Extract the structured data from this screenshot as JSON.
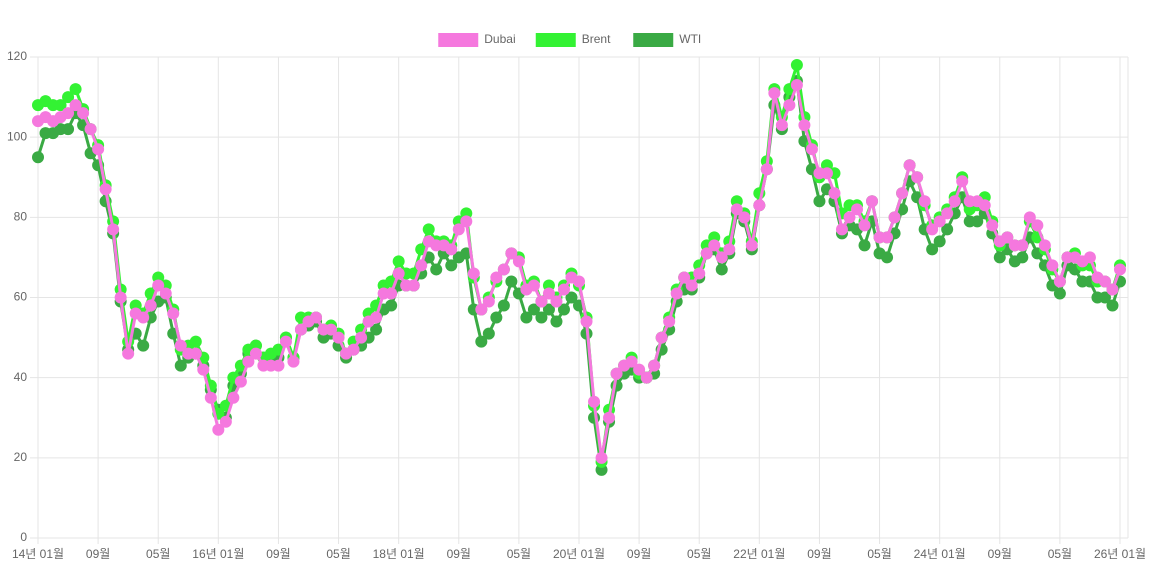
{
  "chart_data": {
    "type": "line",
    "categories": [
      "14년 01월",
      null,
      null,
      null,
      null,
      null,
      null,
      null,
      "09월",
      null,
      null,
      null,
      null,
      null,
      null,
      null,
      "05월",
      null,
      null,
      null,
      null,
      null,
      null,
      null,
      "16년 01월",
      null,
      null,
      null,
      null,
      null,
      null,
      null,
      "09월",
      null,
      null,
      null,
      null,
      null,
      null,
      null,
      "05월",
      null,
      null,
      null,
      null,
      null,
      null,
      null,
      "18년 01월",
      null,
      null,
      null,
      null,
      null,
      null,
      null,
      "09월",
      null,
      null,
      null,
      null,
      null,
      null,
      null,
      "05월",
      null,
      null,
      null,
      null,
      null,
      null,
      null,
      "20년 01월",
      null,
      null,
      null,
      null,
      null,
      null,
      null,
      "09월",
      null,
      null,
      null,
      null,
      null,
      null,
      null,
      "05월",
      null,
      null,
      null,
      null,
      null,
      null,
      null,
      "22년 01월",
      null,
      null,
      null,
      null,
      null,
      null,
      null,
      "09월",
      null,
      null,
      null,
      null,
      null,
      null,
      null,
      "05월",
      null,
      null,
      null,
      null,
      null,
      null,
      null,
      "24년 01월",
      null,
      null,
      null,
      null,
      null,
      null,
      null,
      "09월",
      null,
      null,
      null,
      null,
      null,
      null,
      null,
      "05월",
      null,
      null,
      null,
      null,
      null,
      null,
      null,
      "26년 01월"
    ],
    "series": [
      {
        "name": "Dubai",
        "color": "#f578de",
        "values": [
          104,
          105,
          104,
          105,
          106,
          108,
          106,
          102,
          97,
          87,
          77,
          60,
          46,
          56,
          55,
          58,
          63,
          61,
          56,
          48,
          46,
          46,
          42,
          35,
          27,
          29,
          35,
          39,
          44,
          46,
          43,
          43,
          43,
          49,
          44,
          52,
          54,
          55,
          52,
          52,
          50,
          46,
          47,
          50,
          54,
          55,
          61,
          61,
          66,
          63,
          63,
          68,
          74,
          73,
          73,
          72,
          77,
          79,
          66,
          57,
          59,
          65,
          67,
          71,
          69,
          62,
          63,
          59,
          61,
          59,
          62,
          65,
          64,
          54,
          34,
          20,
          30,
          41,
          43,
          44,
          42,
          40,
          43,
          50,
          54,
          61,
          65,
          63,
          66,
          71,
          73,
          70,
          72,
          82,
          80,
          73,
          83,
          92,
          111,
          103,
          108,
          113,
          103,
          97,
          91,
          91,
          86,
          77,
          80,
          82,
          78,
          84,
          75,
          75,
          80,
          86,
          93,
          90,
          84,
          77,
          79,
          81,
          84,
          89,
          84,
          84,
          83,
          78,
          74,
          75,
          73,
          73,
          80,
          78,
          73,
          68,
          64,
          70,
          70,
          69,
          70,
          65,
          64,
          62,
          67
        ]
      },
      {
        "name": "Brent",
        "color": "#33f233",
        "values": [
          108,
          109,
          108,
          108,
          110,
          112,
          107,
          102,
          98,
          88,
          79,
          62,
          49,
          58,
          56,
          61,
          65,
          63,
          57,
          47,
          48,
          49,
          45,
          38,
          31,
          33,
          40,
          43,
          47,
          48,
          45,
          46,
          47,
          50,
          45,
          55,
          55,
          55,
          52,
          53,
          51,
          46,
          49,
          52,
          56,
          58,
          63,
          64,
          69,
          66,
          66,
          72,
          77,
          74,
          74,
          73,
          79,
          81,
          65,
          57,
          60,
          64,
          67,
          71,
          70,
          63,
          64,
          59,
          63,
          60,
          63,
          66,
          63,
          55,
          33,
          19,
          32,
          41,
          43,
          45,
          41,
          40,
          43,
          50,
          55,
          62,
          65,
          65,
          68,
          73,
          75,
          71,
          74,
          84,
          81,
          74,
          86,
          94,
          112,
          105,
          112,
          118,
          105,
          98,
          90,
          93,
          91,
          81,
          83,
          83,
          79,
          84,
          75,
          75,
          80,
          86,
          93,
          90,
          83,
          78,
          80,
          82,
          85,
          90,
          82,
          83,
          85,
          79,
          73,
          75,
          73,
          73,
          79,
          75,
          72,
          67,
          64,
          70,
          71,
          68,
          68,
          64,
          64,
          62,
          68
        ]
      },
      {
        "name": "WTI",
        "color": "#3aaa44",
        "values": [
          95,
          101,
          101,
          102,
          102,
          106,
          103,
          96,
          93,
          84,
          76,
          59,
          47,
          51,
          48,
          55,
          59,
          60,
          51,
          43,
          45,
          46,
          43,
          37,
          32,
          30,
          38,
          41,
          46,
          48,
          45,
          45,
          45,
          50,
          45,
          52,
          53,
          54,
          50,
          51,
          48,
          45,
          47,
          48,
          50,
          52,
          57,
          58,
          63,
          63,
          63,
          66,
          70,
          67,
          71,
          68,
          70,
          71,
          57,
          49,
          51,
          55,
          58,
          64,
          61,
          55,
          57,
          55,
          57,
          54,
          57,
          60,
          58,
          51,
          30,
          17,
          29,
          38,
          41,
          42,
          40,
          40,
          41,
          47,
          52,
          59,
          62,
          62,
          65,
          71,
          72,
          67,
          71,
          81,
          79,
          72,
          83,
          92,
          108,
          102,
          110,
          114,
          99,
          92,
          84,
          87,
          84,
          76,
          78,
          77,
          73,
          79,
          71,
          70,
          76,
          82,
          89,
          85,
          77,
          72,
          74,
          77,
          81,
          85,
          79,
          79,
          81,
          76,
          70,
          72,
          69,
          70,
          75,
          71,
          68,
          63,
          61,
          68,
          67,
          64,
          64,
          60,
          60,
          58,
          64
        ]
      }
    ],
    "ylim": [
      0,
      120
    ],
    "yticks": [
      0,
      20,
      40,
      60,
      80,
      100,
      120
    ],
    "grid": true,
    "legend": "top"
  }
}
